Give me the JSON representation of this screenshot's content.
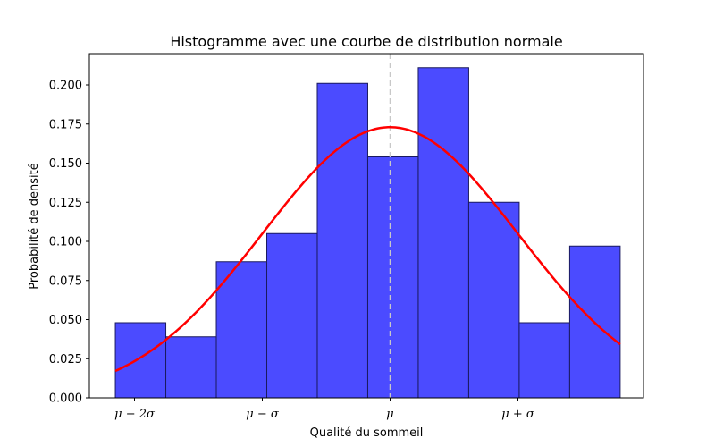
{
  "chart_data": {
    "type": "bar",
    "title": "Histogramme avec une courbe de distribution normale",
    "xlabel": "Qualité du sommeil",
    "ylabel": "Probabilité de densité",
    "ylim": [
      0,
      0.22
    ],
    "y_ticks": [
      "0.000",
      "0.025",
      "0.050",
      "0.075",
      "0.100",
      "0.125",
      "0.150",
      "0.175",
      "0.200"
    ],
    "x_tick_labels": [
      "μ − 2σ",
      "μ − σ",
      "μ",
      "μ + σ"
    ],
    "x_tick_positions_in_sigma": [
      -2,
      -1,
      0,
      1
    ],
    "bin_edges_in_sigma": [
      -2.15,
      -1.755,
      -1.36,
      -0.965,
      -0.57,
      -0.175,
      0.22,
      0.615,
      1.01,
      1.405,
      1.8
    ],
    "values": [
      0.048,
      0.039,
      0.087,
      0.105,
      0.201,
      0.154,
      0.211,
      0.125,
      0.048,
      0.097
    ],
    "curve_peak": 0.173,
    "mean_line": "dashed",
    "colors": {
      "bars": "#4b4bff",
      "bar_edge": "#1a1a5e",
      "curve": "#ff0000",
      "mean_line": "#c8c8c8"
    }
  }
}
